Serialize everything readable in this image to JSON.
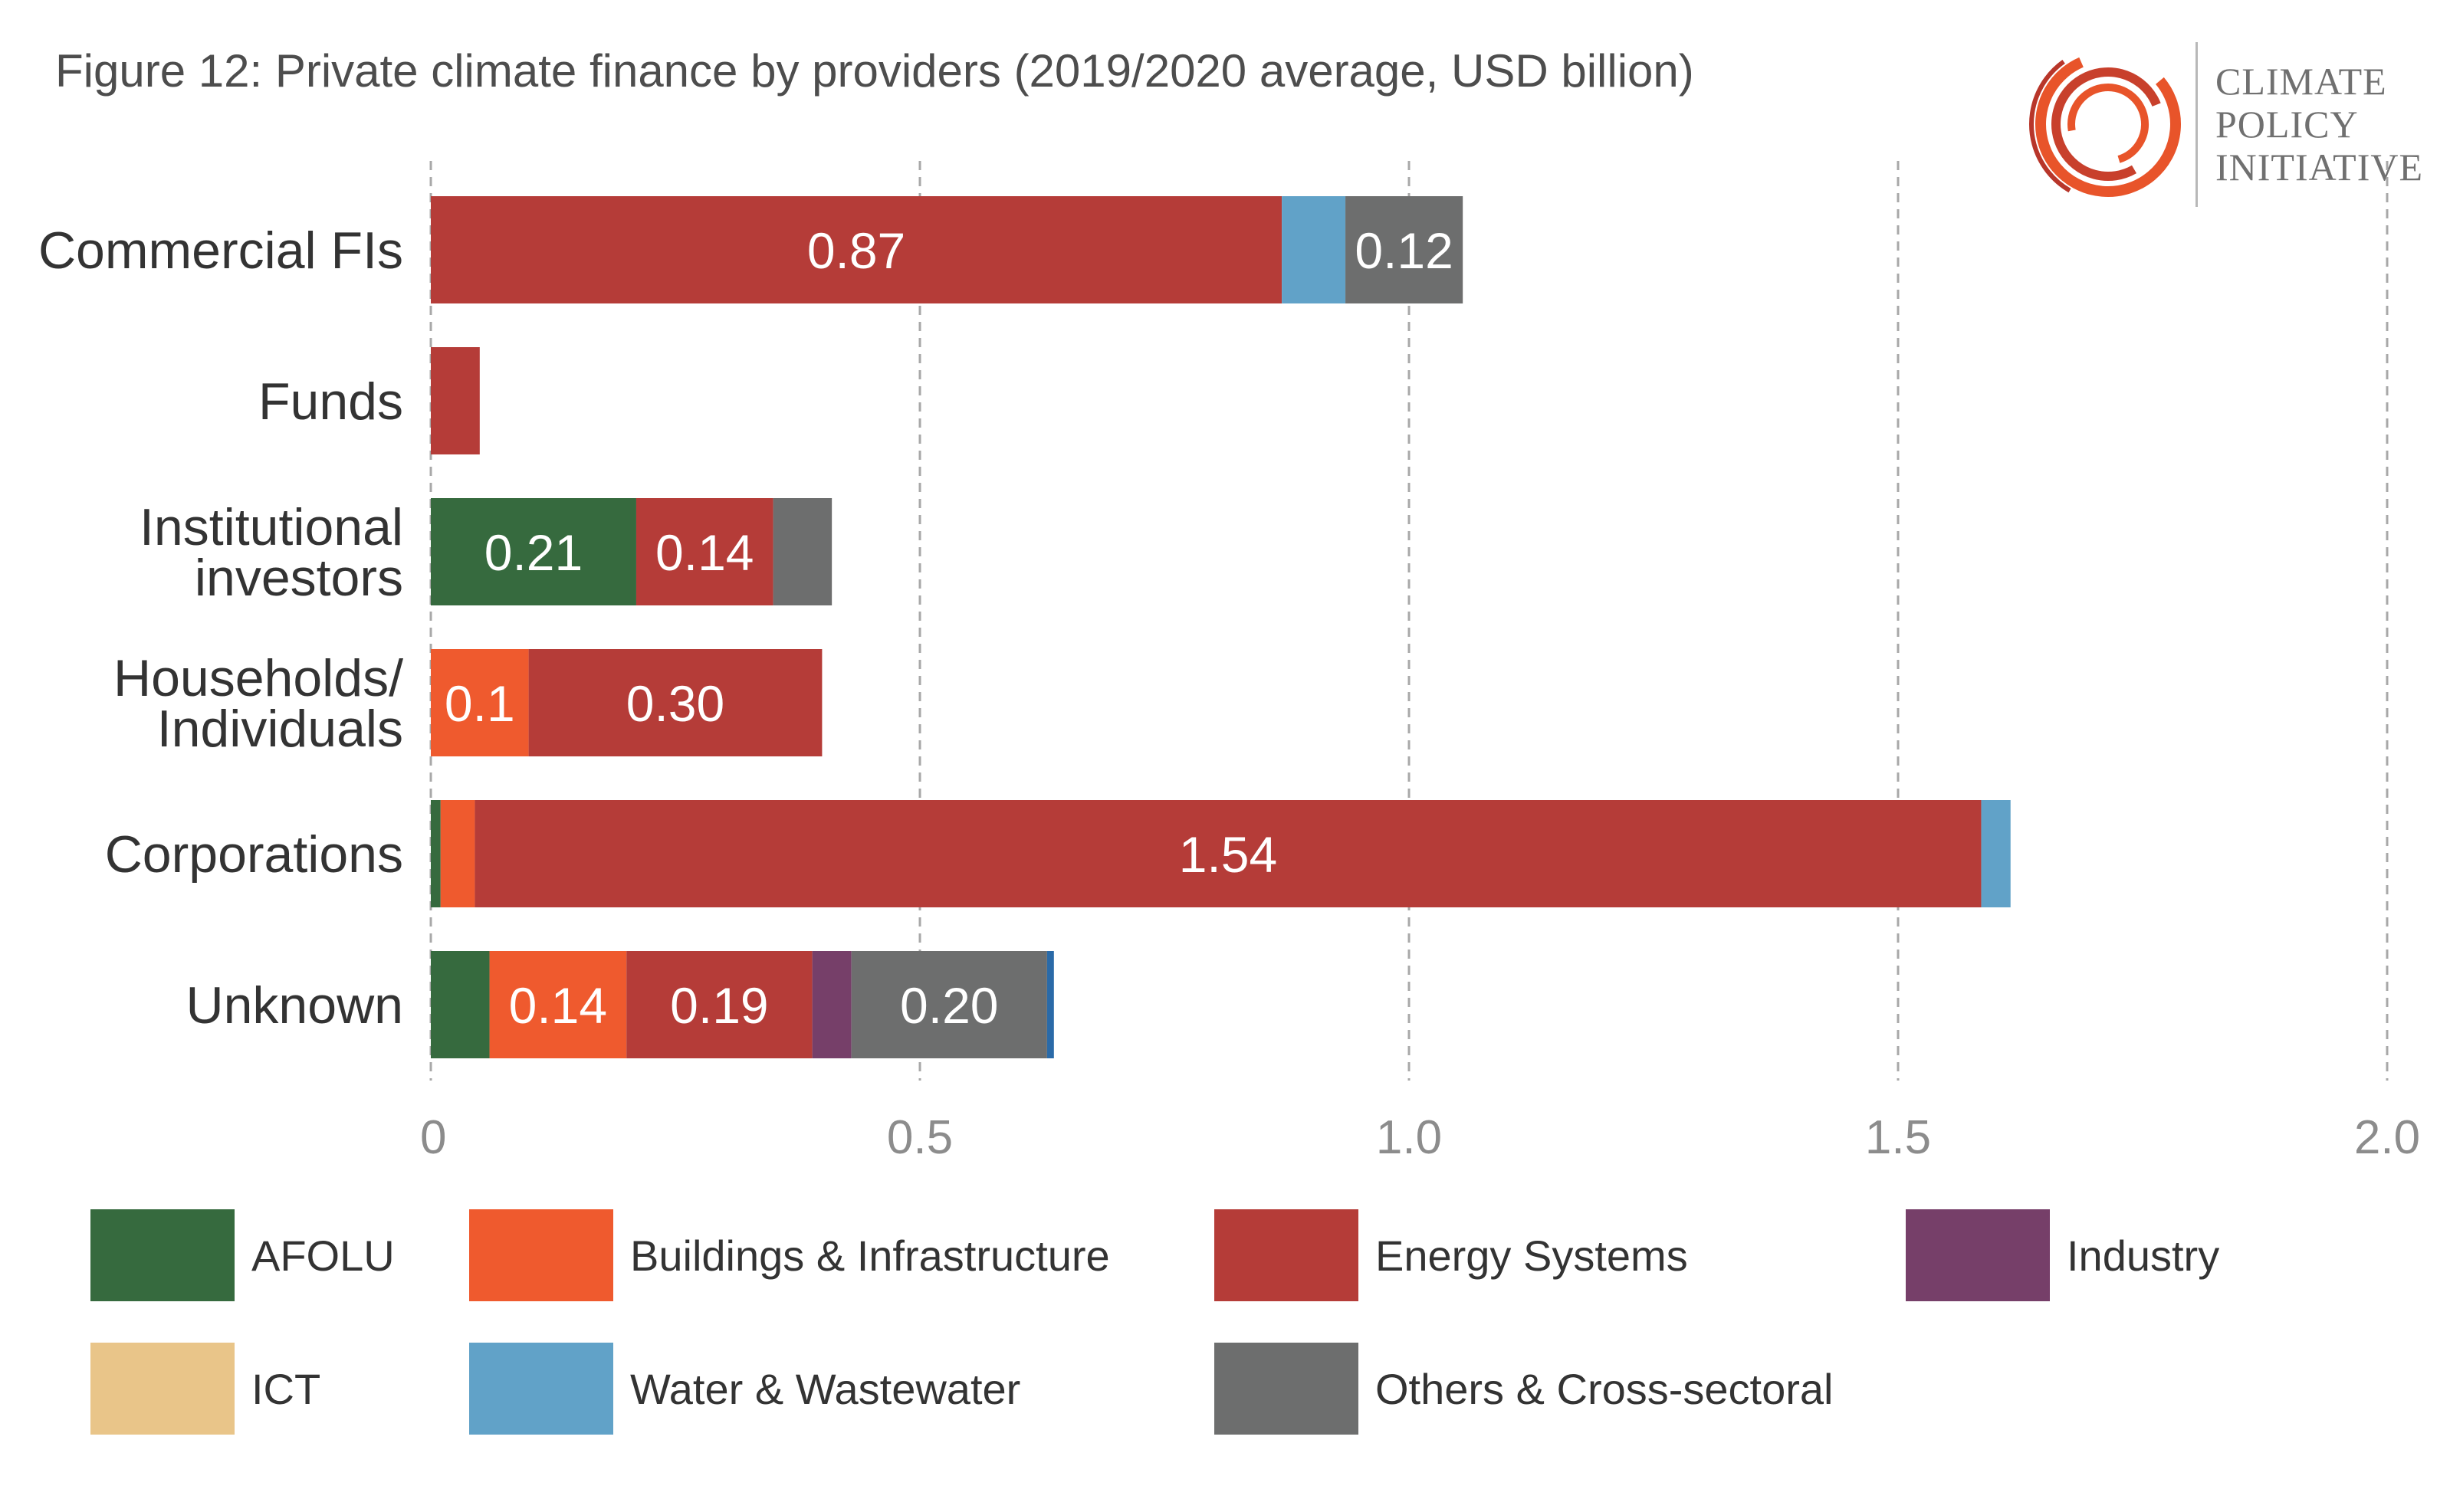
{
  "title": "Figure 12: Private climate finance by providers (2019/2020 average, USD billion)",
  "logo": {
    "lines": [
      "CLIMATE",
      "POLICY",
      "INITIATIVE"
    ],
    "icon": "cpi-swirl-logo-icon"
  },
  "colors": {
    "AFOLU": "#366a3e",
    "Buildings & Infrastructure": "#ef5a2e",
    "Energy Systems": "#b53c38",
    "Industry": "#763f69",
    "ICT": "#e9c589",
    "Water & Wastewater": "#61a2c8",
    "Others & Cross-sectoral": "#6d6e6e",
    "Other-dark-blue": "#2a6aa8"
  },
  "chart_data": {
    "type": "bar",
    "orientation": "horizontal",
    "stacked": true,
    "categories": [
      "Commercial FIs",
      "Funds",
      "Institutional investors",
      "Households/ Individuals",
      "Corporations",
      "Unknown"
    ],
    "category_lines": [
      [
        "Commercial FIs"
      ],
      [
        "Funds"
      ],
      [
        "Institutional",
        "investors"
      ],
      [
        "Households/",
        "Individuals"
      ],
      [
        "Corporations"
      ],
      [
        "Unknown"
      ]
    ],
    "series": [
      {
        "name": "AFOLU",
        "values": [
          0,
          0,
          0.21,
          0,
          0.01,
          0.06
        ]
      },
      {
        "name": "Buildings & Infrastructure",
        "values": [
          0,
          0,
          0,
          0.1,
          0.035,
          0.14
        ]
      },
      {
        "name": "Energy Systems",
        "values": [
          0.87,
          0.05,
          0.14,
          0.3,
          1.54,
          0.19
        ]
      },
      {
        "name": "Industry",
        "values": [
          0,
          0,
          0,
          0,
          0,
          0.04
        ]
      },
      {
        "name": "ICT",
        "values": [
          0,
          0,
          0,
          0,
          0,
          0
        ]
      },
      {
        "name": "Water & Wastewater",
        "values": [
          0.065,
          0,
          0,
          0,
          0.03,
          0
        ]
      },
      {
        "name": "Others & Cross-sectoral",
        "values": [
          0.12,
          0,
          0.06,
          0,
          0,
          0.2
        ]
      },
      {
        "name": "",
        "values": [
          0,
          0,
          0,
          0,
          0,
          0.007
        ]
      }
    ],
    "data_labels": [
      {
        "category": 0,
        "series": 2,
        "text": "0.87"
      },
      {
        "category": 0,
        "series": 6,
        "text": "0.12"
      },
      {
        "category": 2,
        "series": 0,
        "text": "0.21"
      },
      {
        "category": 2,
        "series": 2,
        "text": "0.14"
      },
      {
        "category": 3,
        "series": 1,
        "text": "0.1"
      },
      {
        "category": 3,
        "series": 2,
        "text": "0.30"
      },
      {
        "category": 4,
        "series": 2,
        "text": "1.54"
      },
      {
        "category": 5,
        "series": 1,
        "text": "0.14"
      },
      {
        "category": 5,
        "series": 2,
        "text": "0.19"
      },
      {
        "category": 5,
        "series": 6,
        "text": "0.20"
      }
    ],
    "x_ticks": [
      {
        "value": 0,
        "label": "0"
      },
      {
        "value": 0.5,
        "label": "0.5"
      },
      {
        "value": 1.0,
        "label": "1.0"
      },
      {
        "value": 1.5,
        "label": "1.5"
      },
      {
        "value": 2.0,
        "label": "2.0"
      }
    ],
    "xlim": [
      0,
      2.0
    ],
    "grid": "vertical-dashed",
    "legend_position": "bottom"
  },
  "legend": [
    {
      "label": "AFOLU",
      "color": "#366a3e"
    },
    {
      "label": "Buildings & Infrastructure",
      "color": "#ef5a2e"
    },
    {
      "label": "Energy Systems",
      "color": "#b53c38"
    },
    {
      "label": "Industry",
      "color": "#763f69"
    },
    {
      "label": "ICT",
      "color": "#e9c589"
    },
    {
      "label": "Water & Wastewater",
      "color": "#61a2c8"
    },
    {
      "label": "Others & Cross-sectoral",
      "color": "#6d6e6e"
    }
  ]
}
